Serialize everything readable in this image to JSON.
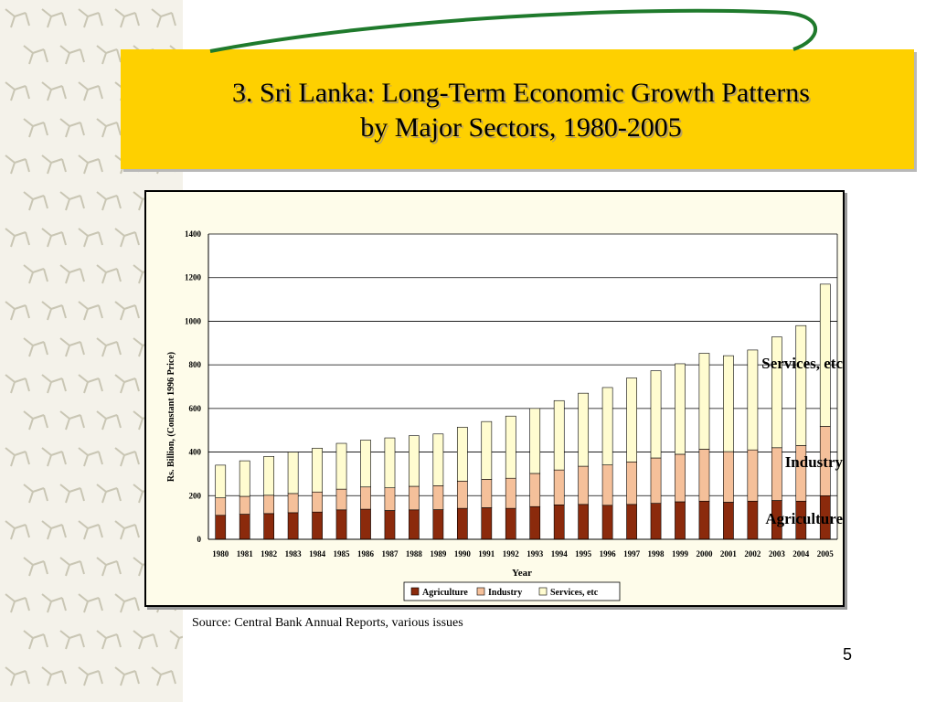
{
  "slide": {
    "title_line1": "3. Sri Lanka: Long-Term Economic Growth Patterns",
    "title_line2": "by Major Sectors, 1980-2005",
    "source": "Source: Central Bank Annual Reports, various issues",
    "page_number": "5",
    "colors": {
      "header_band": "#fed000",
      "swoosh": "#1f7a2c"
    }
  },
  "chart_data": {
    "type": "bar",
    "stacked": true,
    "xlabel": "Year",
    "ylabel": "Rs. Billion, (Constant 1996  Price)",
    "ylim": [
      0,
      1400
    ],
    "yticks": [
      0,
      200,
      400,
      600,
      800,
      1000,
      1200,
      1400
    ],
    "grid": true,
    "legend_position": "bottom",
    "categories": [
      "1980",
      "1981",
      "1982",
      "1983",
      "1984",
      "1985",
      "1986",
      "1987",
      "1988",
      "1989",
      "1990",
      "1991",
      "1992",
      "1993",
      "1994",
      "1995",
      "1996",
      "1997",
      "1998",
      "1999",
      "2000",
      "2001",
      "2002",
      "2003",
      "2004",
      "2005"
    ],
    "series": [
      {
        "name": "Agriculture",
        "color": "#8b2a0c",
        "values": [
          110,
          115,
          118,
          122,
          125,
          135,
          138,
          132,
          135,
          136,
          142,
          145,
          142,
          150,
          158,
          160,
          156,
          160,
          165,
          172,
          175,
          170,
          175,
          178,
          175,
          200
        ]
      },
      {
        "name": "Industry",
        "color": "#f5c09a",
        "values": [
          80,
          82,
          84,
          88,
          92,
          95,
          102,
          104,
          108,
          110,
          125,
          130,
          138,
          152,
          160,
          175,
          185,
          195,
          208,
          218,
          238,
          232,
          235,
          242,
          255,
          318
        ]
      },
      {
        "name": "Services, etc",
        "color": "#fffcd0",
        "values": [
          150,
          163,
          178,
          190,
          201,
          210,
          215,
          229,
          232,
          237,
          247,
          265,
          285,
          298,
          318,
          335,
          355,
          385,
          400,
          415,
          440,
          440,
          458,
          508,
          550,
          652
        ]
      }
    ],
    "annotations": [
      "Services, etc",
      "Industry",
      "Agriculture"
    ]
  }
}
